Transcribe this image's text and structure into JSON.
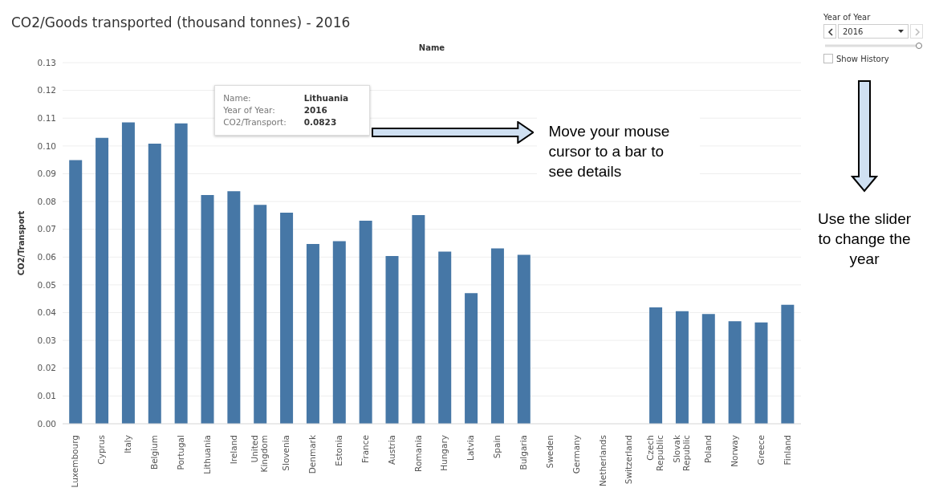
{
  "chart_data": {
    "type": "bar",
    "title": "CO2/Goods transported (thousand tonnes) - 2016",
    "xlabel": "Name",
    "ylabel": "CO2/Transport",
    "categories": [
      "Luxembourg",
      "Cyprus",
      "Italy",
      "Belgium",
      "Portugal",
      "Lithuania",
      "Ireland",
      "United Kingdom",
      "Slovenia",
      "Denmark",
      "Estonia",
      "France",
      "Austria",
      "Romania",
      "Hungary",
      "Latvia",
      "Spain",
      "Bulgaria",
      "Sweden",
      "Germany",
      "Netherlands",
      "Switzerland",
      "Czech Republic",
      "Slovak Republic",
      "Poland",
      "Norway",
      "Greece",
      "Finland"
    ],
    "values": [
      0.0949,
      0.1029,
      0.1085,
      0.1008,
      0.1081,
      0.0823,
      0.0837,
      0.0788,
      0.076,
      0.0647,
      0.0657,
      0.0731,
      0.0604,
      0.0751,
      0.062,
      0.047,
      0.0631,
      0.0608,
      null,
      null,
      null,
      null,
      0.0419,
      0.0405,
      0.0395,
      0.0369,
      0.0365,
      0.0428
    ],
    "color": "#4677a6",
    "ylim": [
      0,
      0.13
    ],
    "yticks": [
      {
        "value": 0,
        "label": "0.00"
      },
      {
        "value": 0.01,
        "label": "0.01"
      },
      {
        "value": 0.02,
        "label": "0.02"
      },
      {
        "value": 0.03,
        "label": "0.03"
      },
      {
        "value": 0.04,
        "label": "0.04"
      },
      {
        "value": 0.05,
        "label": "0.05"
      },
      {
        "value": 0.06,
        "label": "0.06"
      },
      {
        "value": 0.07,
        "label": "0.07"
      },
      {
        "value": 0.08,
        "label": "0.08"
      },
      {
        "value": 0.09,
        "label": "0.09"
      },
      {
        "value": 0.1,
        "label": "0.10"
      },
      {
        "value": 0.11,
        "label": "0.11"
      },
      {
        "value": 0.12,
        "label": "0.12"
      },
      {
        "value": 0.13,
        "label": "0.13"
      }
    ],
    "grid": "y",
    "annotations": [
      "Name:",
      "Lithuania",
      "Year of Year:",
      "2016",
      "CO2/Transport:",
      "0.0823",
      "Move your mouse cursor to a bar to see details",
      "Year of Year",
      "2016",
      "Show History",
      "Use the slider to change the year"
    ]
  }
}
